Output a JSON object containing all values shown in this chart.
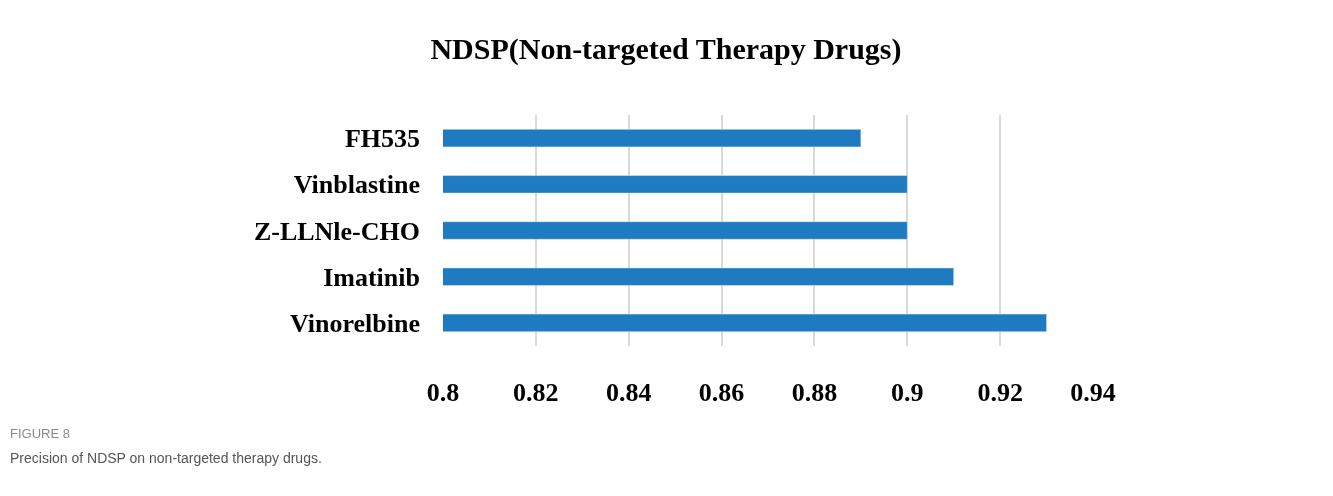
{
  "chart_data": {
    "type": "bar",
    "orientation": "horizontal",
    "title": "NDSP(Non-targeted Therapy Drugs)",
    "categories": [
      "FH535",
      "Vinblastine",
      "Z-LLNle-CHO",
      "Imatinib",
      "Vinorelbine"
    ],
    "values": [
      0.89,
      0.9,
      0.9,
      0.91,
      0.93
    ],
    "color": "#1f7bc1",
    "xlim": [
      0.8,
      0.94
    ],
    "xticks": [
      0.8,
      0.82,
      0.84,
      0.86,
      0.88,
      0.9,
      0.92,
      0.94
    ],
    "grid": "x",
    "annotations": [
      "FIGURE 8",
      "Precision of NDSP on non-targeted therapy drugs."
    ]
  }
}
